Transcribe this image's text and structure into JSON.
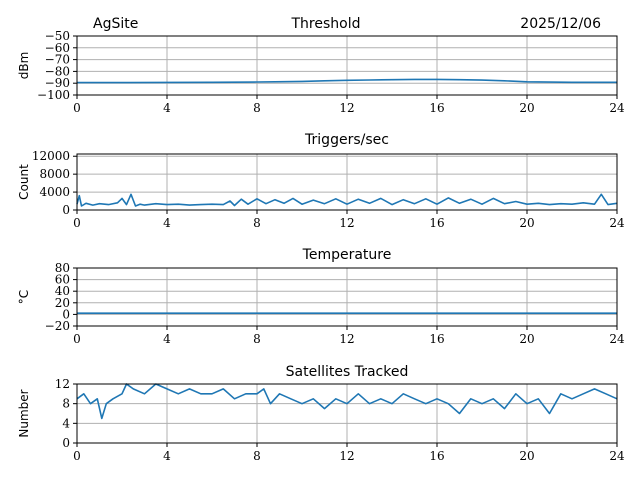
{
  "header": {
    "site": "AgSite",
    "date": "2025/12/06"
  },
  "chart_data": [
    {
      "type": "line",
      "title": "Threshold",
      "ylabel": "dBm",
      "xlim": [
        0,
        24
      ],
      "ylim": [
        -100,
        -50
      ],
      "xticks": [
        0,
        4,
        8,
        12,
        16,
        20,
        24
      ],
      "yticks": [
        -50,
        -60,
        -70,
        -80,
        -90,
        -100
      ],
      "ytick_labels": [
        "−50",
        "−60",
        "−70",
        "−80",
        "−90",
        "−100"
      ],
      "grid": true,
      "series": [
        {
          "x": [
            0,
            2,
            4,
            6,
            8,
            10,
            11,
            12,
            13,
            14,
            15,
            16,
            17,
            18,
            19,
            20,
            22,
            24
          ],
          "y": [
            -89.5,
            -89.5,
            -89.3,
            -89.2,
            -89,
            -88.5,
            -88,
            -87.5,
            -87.3,
            -87,
            -86.8,
            -86.8,
            -87,
            -87.4,
            -88,
            -88.8,
            -89.2,
            -89.2
          ]
        }
      ]
    },
    {
      "type": "line",
      "title": "Triggers/sec",
      "ylabel": "Count",
      "xlim": [
        0,
        24
      ],
      "ylim": [
        0,
        12500
      ],
      "xticks": [
        0,
        4,
        8,
        12,
        16,
        20,
        24
      ],
      "yticks": [
        0,
        4000,
        8000,
        12000
      ],
      "ytick_labels": [
        "0",
        "4000",
        "8000",
        "12000"
      ],
      "grid": true,
      "series": [
        {
          "x": [
            0,
            0.1,
            0.2,
            0.4,
            0.7,
            1,
            1.4,
            1.8,
            2,
            2.2,
            2.4,
            2.6,
            2.8,
            3,
            3.5,
            4,
            4.5,
            5,
            5.5,
            6,
            6.5,
            6.8,
            7,
            7.3,
            7.6,
            8,
            8.4,
            8.8,
            9.2,
            9.6,
            10,
            10.5,
            11,
            11.5,
            12,
            12.5,
            13,
            13.5,
            14,
            14.5,
            15,
            15.5,
            16,
            16.5,
            17,
            17.5,
            18,
            18.5,
            19,
            19.5,
            20,
            20.5,
            21,
            21.5,
            22,
            22.5,
            23,
            23.3,
            23.6,
            24
          ],
          "y": [
            1300,
            3200,
            900,
            1500,
            1100,
            1400,
            1200,
            1600,
            2600,
            1200,
            3500,
            900,
            1300,
            1100,
            1400,
            1200,
            1300,
            1100,
            1200,
            1300,
            1200,
            2000,
            1000,
            2400,
            1300,
            2500,
            1400,
            2300,
            1500,
            2600,
            1300,
            2200,
            1400,
            2500,
            1300,
            2400,
            1500,
            2600,
            1200,
            2300,
            1400,
            2500,
            1300,
            2700,
            1500,
            2400,
            1300,
            2600,
            1400,
            1900,
            1300,
            1500,
            1200,
            1400,
            1300,
            1600,
            1300,
            3500,
            1200,
            1500
          ]
        }
      ]
    },
    {
      "type": "line",
      "title": "Temperature",
      "ylabel": "°C",
      "xlim": [
        0,
        24
      ],
      "ylim": [
        -20,
        80
      ],
      "xticks": [
        0,
        4,
        8,
        12,
        16,
        20,
        24
      ],
      "yticks": [
        -20,
        0,
        20,
        40,
        60,
        80
      ],
      "ytick_labels": [
        "−20",
        "0",
        "20",
        "40",
        "60",
        "80"
      ],
      "grid": true,
      "series": [
        {
          "x": [
            0,
            24
          ],
          "y": [
            2,
            2
          ]
        }
      ]
    },
    {
      "type": "line",
      "title": "Satellites Tracked",
      "ylabel": "Number",
      "xlim": [
        0,
        24
      ],
      "ylim": [
        0,
        12
      ],
      "xticks": [
        0,
        4,
        8,
        12,
        16,
        20,
        24
      ],
      "yticks": [
        0,
        4,
        8,
        12
      ],
      "ytick_labels": [
        "0",
        "4",
        "8",
        "12"
      ],
      "grid": true,
      "series": [
        {
          "x": [
            0,
            0.3,
            0.6,
            0.9,
            1.1,
            1.3,
            1.6,
            2,
            2.2,
            2.5,
            3,
            3.5,
            4,
            4.5,
            5,
            5.5,
            6,
            6.5,
            7,
            7.5,
            8,
            8.3,
            8.6,
            9,
            9.5,
            10,
            10.5,
            11,
            11.5,
            12,
            12.5,
            13,
            13.5,
            14,
            14.5,
            15,
            15.5,
            16,
            16.5,
            17,
            17.5,
            18,
            18.5,
            19,
            19.5,
            20,
            20.5,
            21,
            21.5,
            22,
            22.5,
            23,
            23.5,
            24
          ],
          "y": [
            9,
            10,
            8,
            9,
            5,
            8,
            9,
            10,
            12,
            11,
            10,
            12,
            11,
            10,
            11,
            10,
            10,
            11,
            9,
            10,
            10,
            11,
            8,
            10,
            9,
            8,
            9,
            7,
            9,
            8,
            10,
            8,
            9,
            8,
            10,
            9,
            8,
            9,
            8,
            6,
            9,
            8,
            9,
            7,
            10,
            8,
            9,
            6,
            10,
            9,
            10,
            11,
            10,
            9
          ]
        }
      ]
    }
  ]
}
